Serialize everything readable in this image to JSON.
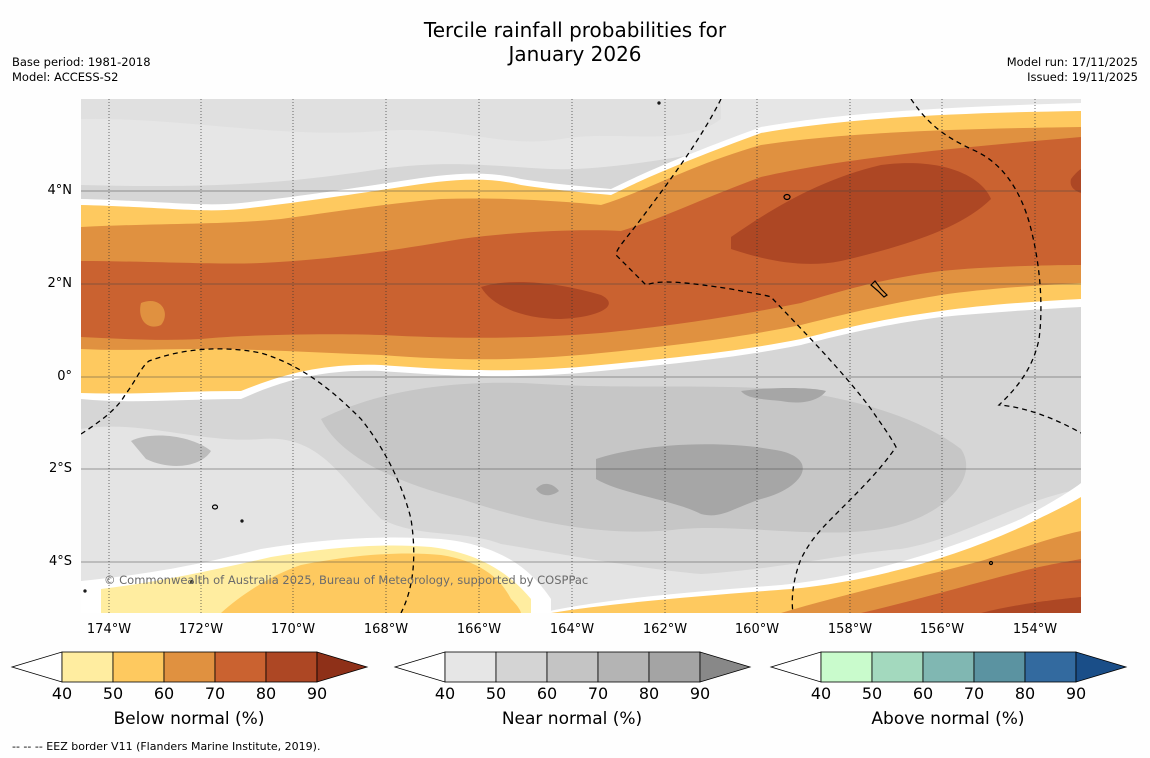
{
  "title_line1": "Tercile rainfall probabilities for",
  "title_line2": "January 2026",
  "base_period": "Base period: 1981-2018",
  "model": "Model: ACCESS-S2",
  "model_run": "Model run: 17/11/2025",
  "issued": "Issued: 19/11/2025",
  "copyright": "© Commonwealth of Australia 2025, Bureau of Meteorology, supported by COSPPac",
  "footnote": "--  --  -- EEZ border V11 (Flanders Marine Institute, 2019).",
  "lat_labels": [
    "4°N",
    "2°N",
    "0°",
    "2°S",
    "4°S"
  ],
  "lon_labels": [
    "174°W",
    "172°W",
    "170°W",
    "168°W",
    "166°W",
    "164°W",
    "162°W",
    "160°W",
    "158°W",
    "156°W",
    "154°W"
  ],
  "colorbars": [
    {
      "title": "Below normal (%)",
      "ticks": [
        "40",
        "50",
        "60",
        "70",
        "80",
        "90"
      ],
      "colors": [
        "#ffffff",
        "#ffeda0",
        "#fec95f",
        "#e09140",
        "#ca6230",
        "#ad4724",
        "#8e3018"
      ]
    },
    {
      "title": "Near normal (%)",
      "ticks": [
        "40",
        "50",
        "60",
        "70",
        "80",
        "90"
      ],
      "colors": [
        "#ffffff",
        "#e6e6e6",
        "#d4d4d4",
        "#c4c4c4",
        "#b4b4b4",
        "#a4a4a4",
        "#888888"
      ]
    },
    {
      "title": "Above normal (%)",
      "ticks": [
        "40",
        "50",
        "60",
        "70",
        "80",
        "90"
      ],
      "colors": [
        "#ffffff",
        "#c9fbcc",
        "#a3d9be",
        "#80b7b2",
        "#5b93a1",
        "#336a9f",
        "#1a4e88"
      ]
    }
  ]
}
